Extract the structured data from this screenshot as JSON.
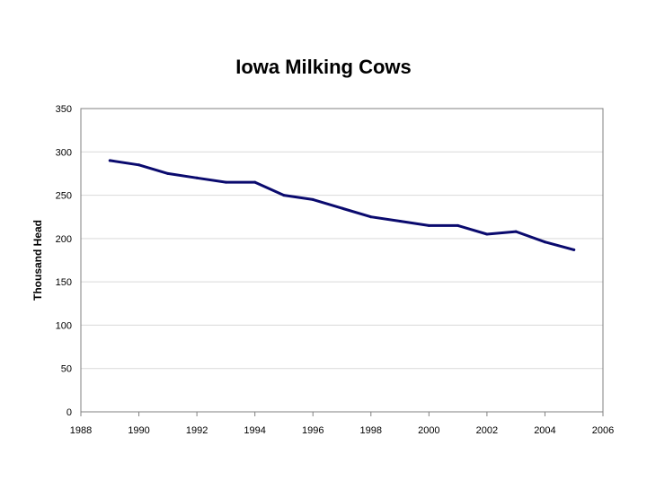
{
  "chart_data": {
    "type": "line",
    "title": "Iowa Milking Cows",
    "xlabel": "",
    "ylabel": "Thousand Head",
    "xlim": [
      1988,
      2006
    ],
    "ylim": [
      0,
      350
    ],
    "x_ticks": [
      1988,
      1990,
      1992,
      1994,
      1996,
      1998,
      2000,
      2002,
      2004,
      2006
    ],
    "y_ticks": [
      0,
      50,
      100,
      150,
      200,
      250,
      300,
      350
    ],
    "x_tick_labels": [
      "1988",
      "1990",
      "1992",
      "1994",
      "1996",
      "1998",
      "2000",
      "2002",
      "2004",
      "2006"
    ],
    "y_tick_labels": [
      "0",
      "50",
      "100",
      "150",
      "200",
      "250",
      "300",
      "350"
    ],
    "grid": true,
    "legend": "none",
    "colors": {
      "line": "#0a0a6e",
      "grid": "#d9d9d9",
      "frame": "#808080"
    },
    "series": [
      {
        "x": [
          1989,
          1990,
          1991,
          1992,
          1993,
          1994,
          1995,
          1996,
          1997,
          1998,
          1999,
          2000,
          2001,
          2002,
          2003,
          2004,
          2005
        ],
        "y": [
          290,
          285,
          275,
          270,
          265,
          265,
          250,
          245,
          235,
          225,
          220,
          215,
          215,
          205,
          208,
          196,
          187
        ]
      }
    ]
  }
}
